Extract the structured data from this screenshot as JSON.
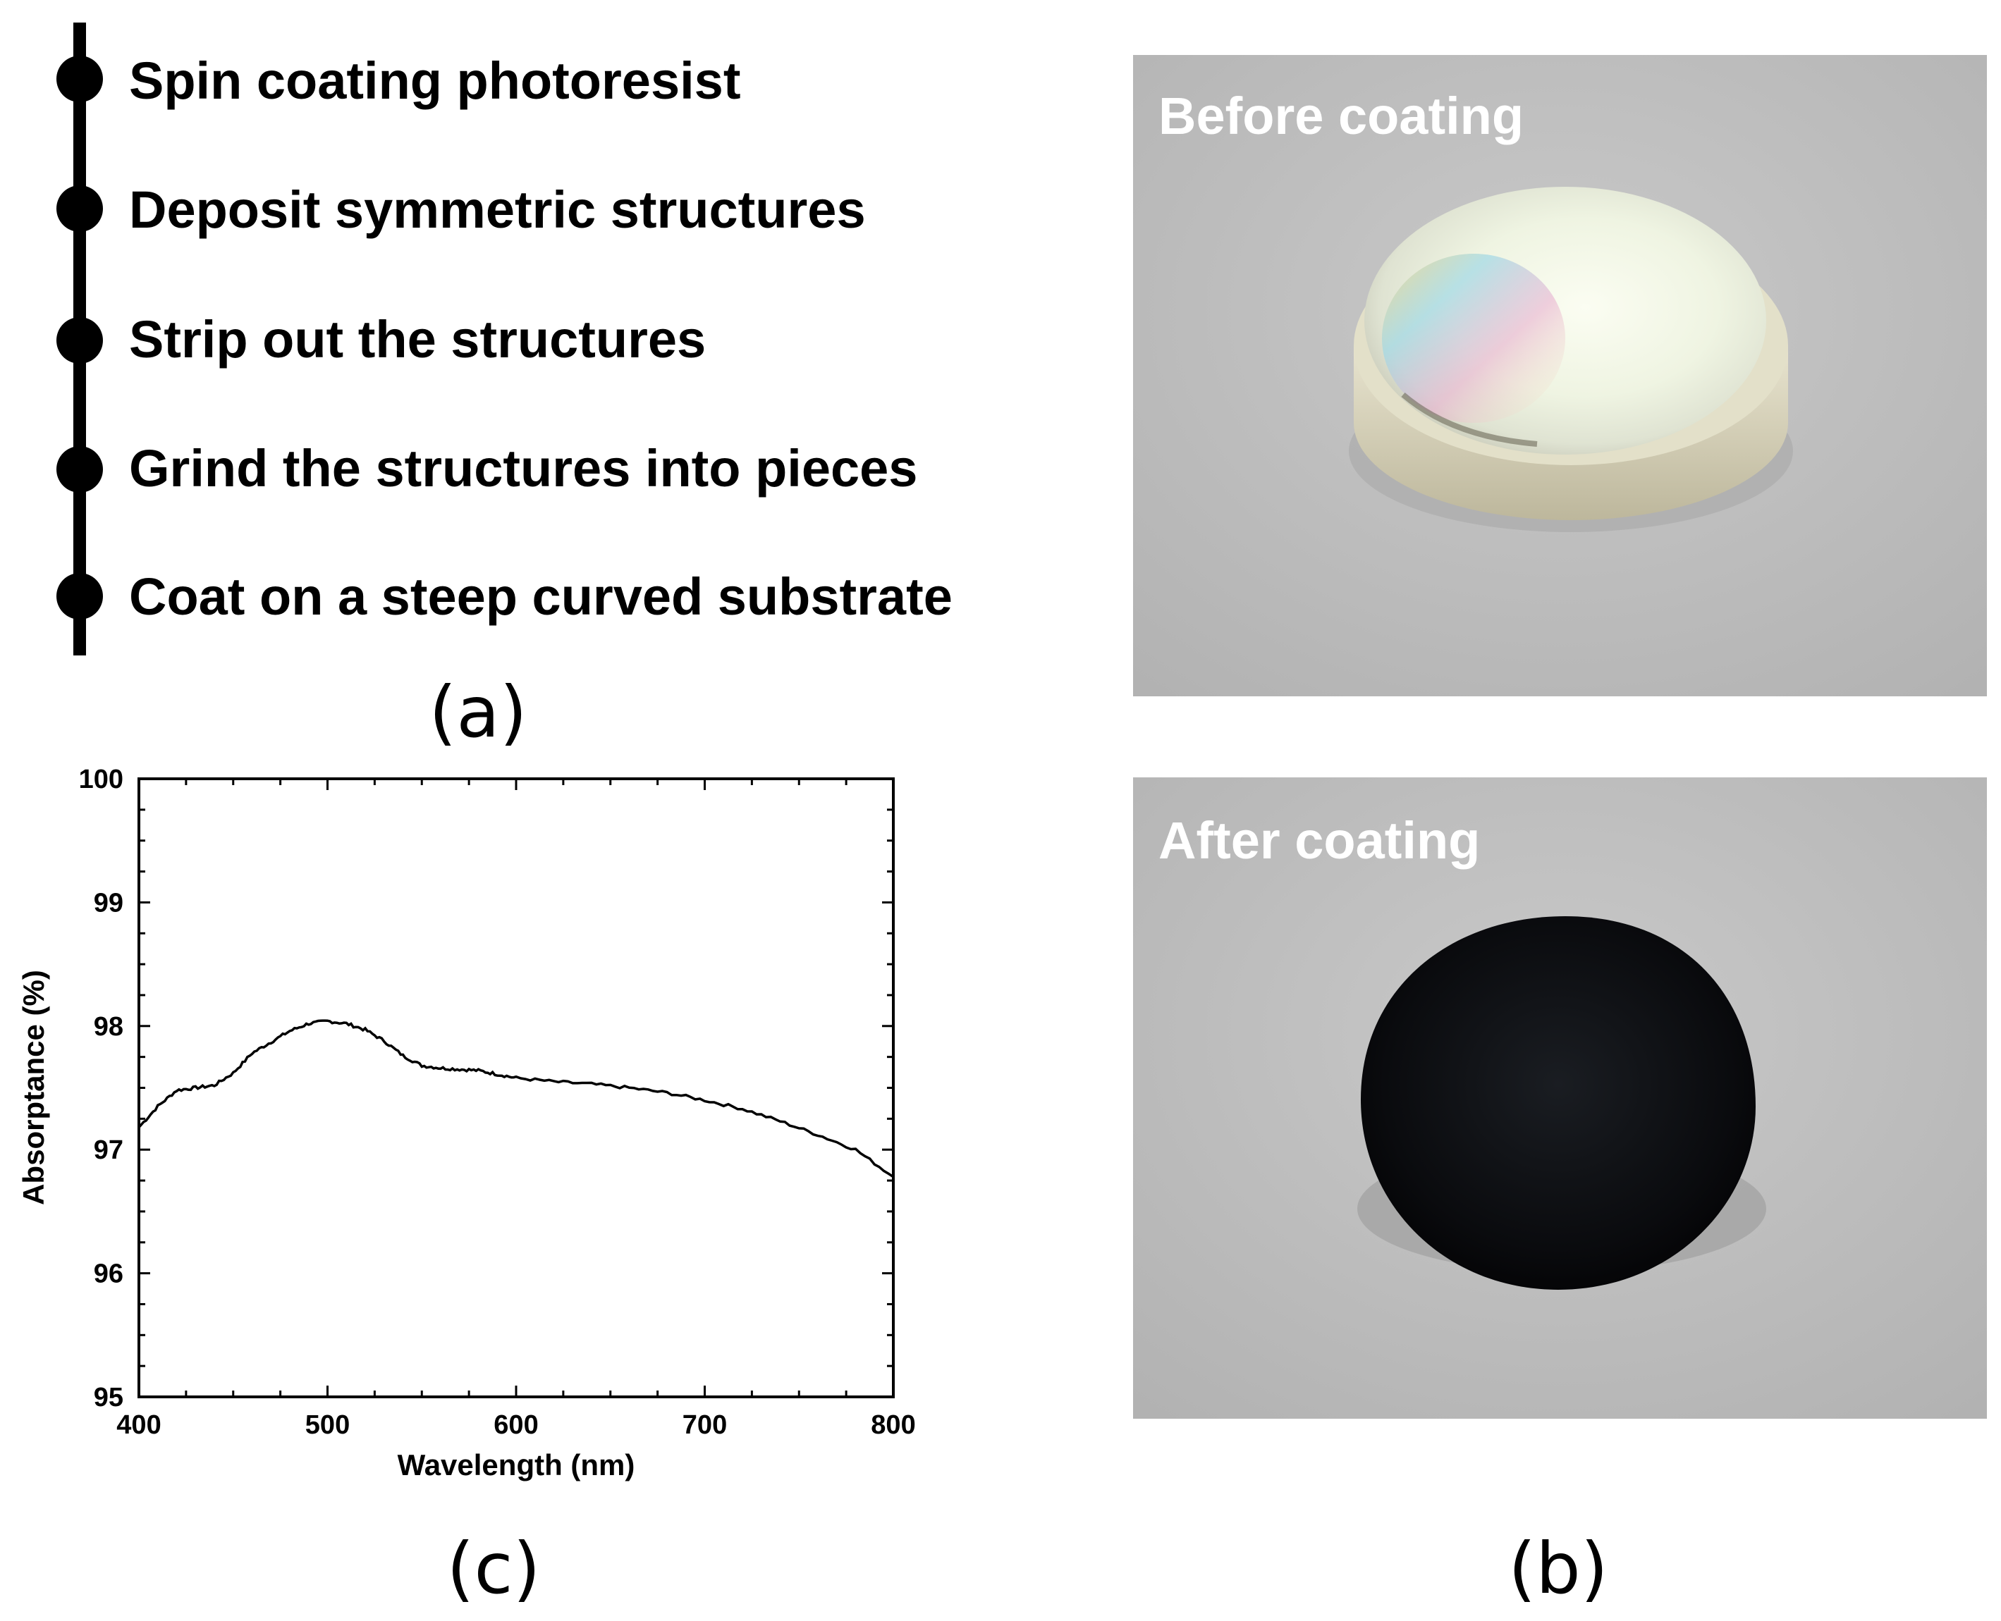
{
  "panel_a": {
    "label": "(a)",
    "steps": [
      "Spin coating photoresist",
      "Deposit symmetric structures",
      "Strip out the structures",
      "Grind the structures into pieces",
      "Coat on a steep curved substrate"
    ]
  },
  "panel_b": {
    "label": "(b)",
    "before_label": "Before coating",
    "after_label": "After coating"
  },
  "panel_c": {
    "label": "(c)"
  },
  "chart_data": {
    "type": "line",
    "title": "",
    "xlabel": "Wavelength (nm)",
    "ylabel": "Absorptance (%)",
    "xlim": [
      400,
      800
    ],
    "ylim": [
      95,
      100
    ],
    "xticks": [
      400,
      500,
      600,
      700,
      800
    ],
    "yticks": [
      95,
      96,
      97,
      98,
      99,
      100
    ],
    "grid": false,
    "series": [
      {
        "x": [
          400,
          410,
          420,
          430,
          440,
          450,
          460,
          470,
          480,
          490,
          500,
          510,
          520,
          530,
          540,
          550,
          560,
          570,
          580,
          590,
          600,
          620,
          640,
          660,
          680,
          700,
          720,
          740,
          760,
          780,
          800
        ],
        "y": [
          97.18,
          97.35,
          97.48,
          97.5,
          97.52,
          97.62,
          97.78,
          97.87,
          97.96,
          98.02,
          98.04,
          98.02,
          97.97,
          97.88,
          97.76,
          97.68,
          97.66,
          97.65,
          97.64,
          97.61,
          97.58,
          97.55,
          97.53,
          97.5,
          97.46,
          97.4,
          97.33,
          97.23,
          97.12,
          97.0,
          96.78
        ]
      }
    ]
  }
}
